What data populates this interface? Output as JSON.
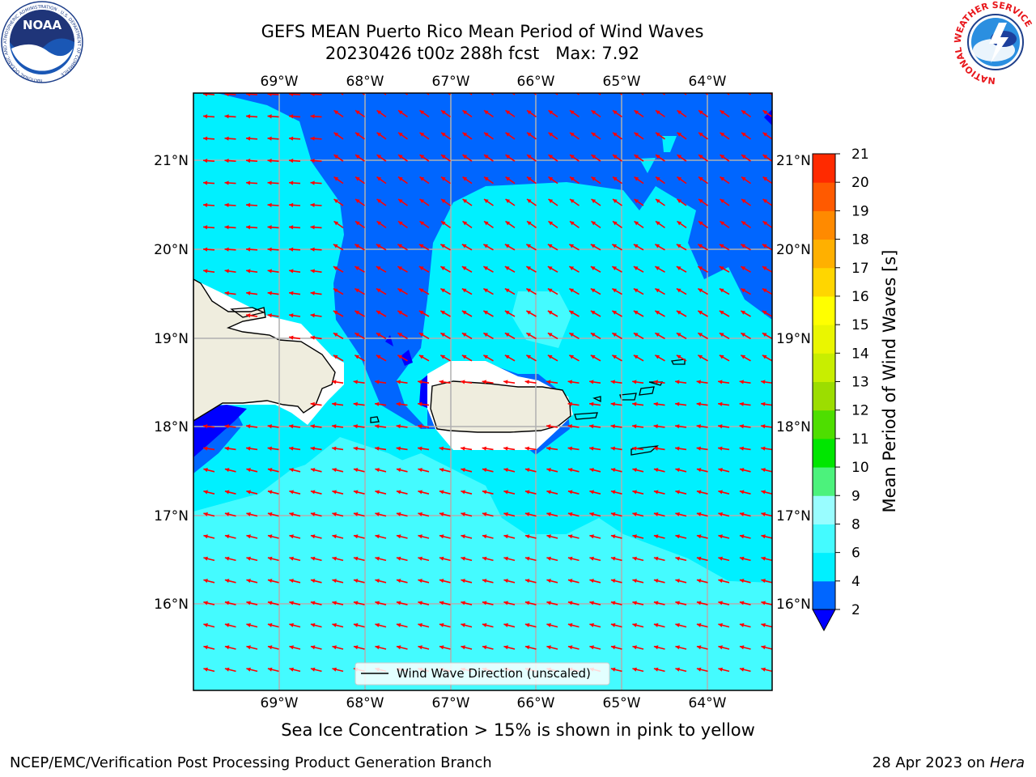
{
  "header": {
    "title_line1": "GEFS MEAN Puerto Rico Mean Period of Wind Waves",
    "title_line2": "20230426 t00z 288h fcst   Max: 7.92"
  },
  "logos": {
    "left": "noaa-logo",
    "left_text": "NOAA",
    "left_ring": "NATIONAL OCEANIC AND ATMOSPHERIC ADMINISTRATION · U.S. DEPARTMENT OF COMMERCE",
    "right": "national-weather-service-logo",
    "right_ring": "NATIONAL WEATHER SERVICE"
  },
  "map": {
    "lon_labels": [
      "69°W",
      "68°W",
      "67°W",
      "66°W",
      "65°W",
      "64°W"
    ],
    "lat_labels": [
      "21°N",
      "20°N",
      "19°N",
      "18°N",
      "17°N",
      "16°N"
    ],
    "legend_label": "Wind Wave Direction (unscaled)",
    "arrow_color": "#ff0000",
    "land_color": "#efedde"
  },
  "colorbar": {
    "label": "Mean Period of Wind Waves [s]",
    "ticks": [
      "2",
      "4",
      "6",
      "8",
      "9",
      "10",
      "11",
      "12",
      "13",
      "14",
      "15",
      "16",
      "17",
      "18",
      "19",
      "20",
      "21"
    ],
    "colors": [
      "#0066ff",
      "#00f0ff",
      "#44fbff",
      "#99fdff",
      "#4cf27c",
      "#00e600",
      "#4ede00",
      "#9cdd00",
      "#c8ee00",
      "#eaf600",
      "#ffff00",
      "#ffd600",
      "#ffb000",
      "#ff8a00",
      "#ff5a00",
      "#ff2a00"
    ],
    "extend_color": "#0000ff"
  },
  "notes": {
    "sea_ice": "Sea Ice Concentration > 15% is shown in pink to yellow",
    "footer_left": "NCEP/EMC/Verification Post Processing Product Generation Branch",
    "footer_right_prefix": "28 Apr 2023 on ",
    "footer_right_host": "Hera"
  }
}
